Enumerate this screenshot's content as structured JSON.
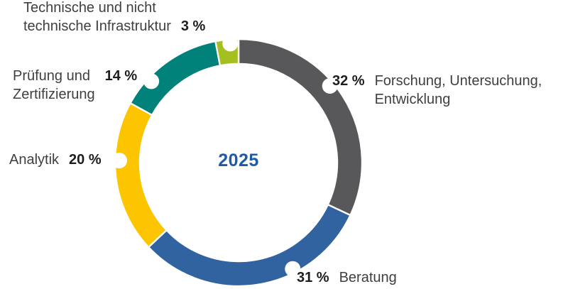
{
  "chart_data": {
    "type": "pie",
    "variant": "donut",
    "title": "",
    "center_label": "2025",
    "center_label_color": "#1d5ba6",
    "unit": "%",
    "start_angle": 0,
    "direction": "clockwise",
    "separator_color": "#ffffff",
    "segments": [
      {
        "label": "Forschung, Untersuchung,\nEntwicklung",
        "value": 32,
        "value_label": "32 %",
        "color": "#58585a",
        "label_angle": 50,
        "label_side": "right"
      },
      {
        "label": "Beratung",
        "value": 31,
        "value_label": "31 %",
        "color": "#30639f",
        "label_angle": 153,
        "label_side": "bottom"
      },
      {
        "label": "Analytik",
        "value": 20,
        "value_label": "20 %",
        "color": "#fdc400",
        "label_angle": 271,
        "label_side": "left"
      },
      {
        "label": "Prüfung und\nZertifizierung",
        "value": 14,
        "value_label": "14 %",
        "color": "#00827b",
        "label_angle": 313,
        "label_side": "left"
      },
      {
        "label": "Technische und nicht\ntechnische Infrastruktur",
        "value": 3,
        "value_label": "3 %",
        "color": "#a4bf20",
        "label_angle": 356,
        "label_side": "top"
      }
    ]
  }
}
